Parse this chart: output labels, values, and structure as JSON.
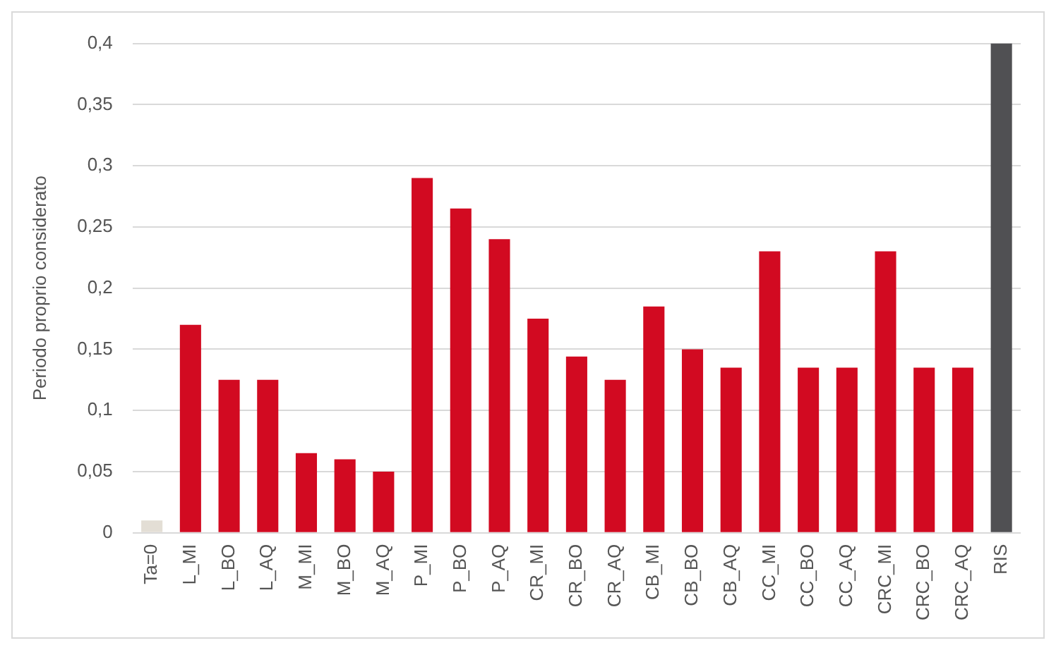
{
  "chart_data": {
    "type": "bar",
    "ylabel": "Periodo proprio considerato",
    "categories": [
      "Ta=0",
      "L_MI",
      "L_BO",
      "L_AQ",
      "M_MI",
      "M_BO",
      "M_AQ",
      "P_MI",
      "P_BO",
      "P_AQ",
      "CR_MI",
      "CR_BO",
      "CR_AQ",
      "CB_MI",
      "CB_BO",
      "CB_AQ",
      "CC_MI",
      "CC_BO",
      "CC_AQ",
      "CRC_MI",
      "CRC_BO",
      "CRC_AQ",
      "RIS"
    ],
    "values": [
      0.01,
      0.17,
      0.125,
      0.125,
      0.065,
      0.06,
      0.05,
      0.29,
      0.265,
      0.24,
      0.175,
      0.144,
      0.125,
      0.185,
      0.15,
      0.135,
      0.23,
      0.135,
      0.135,
      0.23,
      0.135,
      0.135,
      0.4
    ],
    "colors": [
      "#e3ded5",
      "#d20a21",
      "#d20a21",
      "#d20a21",
      "#d20a21",
      "#d20a21",
      "#d20a21",
      "#d20a21",
      "#d20a21",
      "#d20a21",
      "#d20a21",
      "#d20a21",
      "#d20a21",
      "#d20a21",
      "#d20a21",
      "#d20a21",
      "#d20a21",
      "#d20a21",
      "#d20a21",
      "#d20a21",
      "#d20a21",
      "#d20a21",
      "#505053"
    ],
    "ylim": [
      0,
      0.4
    ],
    "yticks": [
      0,
      {
        "value": 0.05,
        "label": "0,05"
      },
      {
        "value": 0.1,
        "label": "0,1"
      },
      {
        "value": 0.15,
        "label": "0,15"
      },
      {
        "value": 0.2,
        "label": "0,2"
      },
      {
        "value": 0.25,
        "label": "0,25"
      },
      {
        "value": 0.3,
        "label": "0,3"
      },
      {
        "value": 0.35,
        "label": "0,35"
      },
      {
        "value": 0.4,
        "label": "0,4"
      }
    ],
    "grid": "y",
    "legend": false
  }
}
